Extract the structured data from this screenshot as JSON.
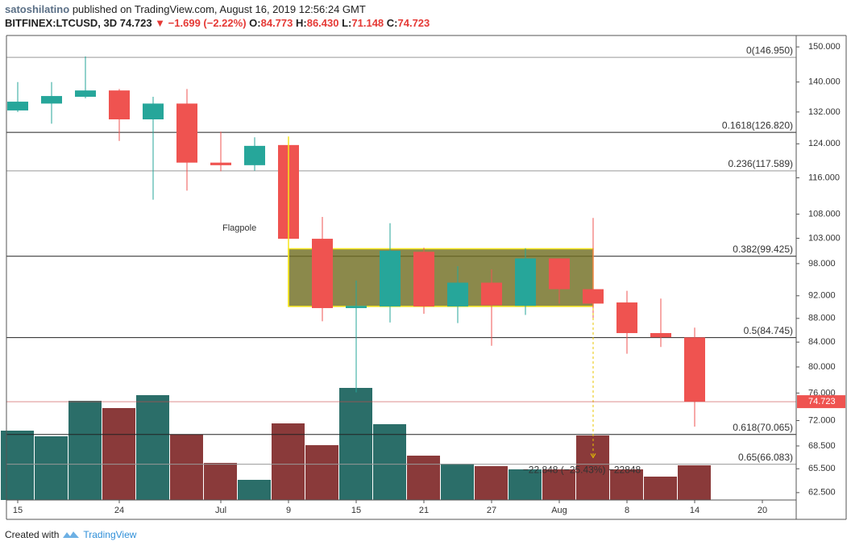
{
  "header": {
    "author": "satoshilatino",
    "published": "published on TradingView.com, August 16, 2019 12:56:24 GMT",
    "symbol": "BITFINEX:LTCUSD, 3D",
    "last": "74.723",
    "arrow": "▼",
    "change": "−1.699 (−2.22%)",
    "ohlc": [
      {
        "key": "O:",
        "value": "84.773"
      },
      {
        "key": "H:",
        "value": "86.430"
      },
      {
        "key": "L:",
        "value": "71.148"
      },
      {
        "key": "C:",
        "value": "74.723"
      }
    ]
  },
  "footer": {
    "created": "Created with",
    "brand": "TradingView"
  },
  "chart_data": {
    "type": "candlestick",
    "log_scale": true,
    "categories": [
      "15",
      null,
      null,
      "24",
      null,
      null,
      "Jul",
      null,
      "9",
      null,
      "15",
      null,
      "21",
      null,
      "27",
      null,
      "Aug",
      null,
      "8",
      null,
      "14",
      null,
      "20"
    ],
    "open": [
      132.4,
      134.2,
      136.0,
      137.7,
      130.1,
      134.2,
      119.5,
      118.9,
      123.7,
      102.9,
      89.8,
      90.1,
      100.3,
      90.1,
      94.4,
      90.2,
      99.0,
      93.2,
      90.8,
      85.5,
      84.773,
      null,
      null
    ],
    "high": [
      140.0,
      140.0,
      147.2,
      138.1,
      136.0,
      138.1,
      127.0,
      125.6,
      123.7,
      107.4,
      94.8,
      106.1,
      101.1,
      97.5,
      96.9,
      101.0,
      99.0,
      107.2,
      92.9,
      91.5,
      86.43,
      null,
      null
    ],
    "low": [
      132.0,
      129.0,
      135.6,
      124.7,
      111.1,
      113.1,
      117.5,
      117.6,
      102.9,
      87.5,
      76.1,
      87.3,
      88.8,
      87.2,
      83.4,
      88.6,
      90.6,
      87.8,
      82.1,
      83.2,
      71.148,
      null,
      null
    ],
    "close": [
      134.7,
      136.2,
      137.7,
      130.1,
      134.2,
      119.5,
      118.9,
      123.5,
      102.9,
      89.8,
      90.2,
      100.5,
      90.1,
      94.4,
      90.3,
      99.0,
      93.2,
      90.6,
      85.5,
      84.8,
      74.723,
      null,
      null
    ],
    "volume": [
      86,
      79,
      123,
      114,
      130,
      81,
      46,
      25,
      95,
      68,
      139,
      94,
      55,
      45,
      42,
      38,
      38,
      80,
      38,
      29,
      43,
      null,
      null
    ],
    "volume_lim": [
      0,
      160
    ],
    "up_color": "#26a69a",
    "down_color": "#ef5350",
    "volume_up_color": "#2b6e69",
    "volume_down_color": "#8a3a3a",
    "ylim": [
      61.6,
      153.4
    ],
    "yticks": [
      {
        "value": 150,
        "label": "150.000"
      },
      {
        "value": 140,
        "label": "140.000"
      },
      {
        "value": 132,
        "label": "132.000"
      },
      {
        "value": 124,
        "label": "124.000"
      },
      {
        "value": 116,
        "label": "116.000"
      },
      {
        "value": 108,
        "label": "108.000"
      },
      {
        "value": 103,
        "label": "103.000"
      },
      {
        "value": 98,
        "label": "98.000"
      },
      {
        "value": 92,
        "label": "92.000"
      },
      {
        "value": 88,
        "label": "88.000"
      },
      {
        "value": 84,
        "label": "84.000"
      },
      {
        "value": 80,
        "label": "80.000"
      },
      {
        "value": 76,
        "label": "76.000"
      },
      {
        "value": 72,
        "label": "72.000"
      },
      {
        "value": 68.5,
        "label": "68.500"
      },
      {
        "value": 65.5,
        "label": "65.500"
      },
      {
        "value": 62.5,
        "label": "62.500"
      }
    ],
    "fib_levels": [
      {
        "value": 146.95,
        "label": "0(146.950)",
        "color": "#999999"
      },
      {
        "value": 126.82,
        "label": "0.1618(126.820)",
        "color": "#222222"
      },
      {
        "value": 117.589,
        "label": "0.236(117.589)",
        "color": "#999999"
      },
      {
        "value": 99.425,
        "label": "0.382(99.425)",
        "color": "#222222"
      },
      {
        "value": 84.745,
        "label": "0.5(84.745)",
        "color": "#222222"
      },
      {
        "value": 70.065,
        "label": "0.618(70.065)",
        "color": "#222222"
      },
      {
        "value": 66.083,
        "label": "0.65(66.083)",
        "color": "#999999"
      }
    ],
    "flag_channel": {
      "high": 100.9,
      "low": 90.1
    },
    "flagpole": {
      "high": 125.8,
      "low": 90.1,
      "label": "Flagpole"
    },
    "measure": {
      "from": 89.8,
      "to": 66.952,
      "label": "−22.848 (−25.43%) −22848"
    }
  }
}
